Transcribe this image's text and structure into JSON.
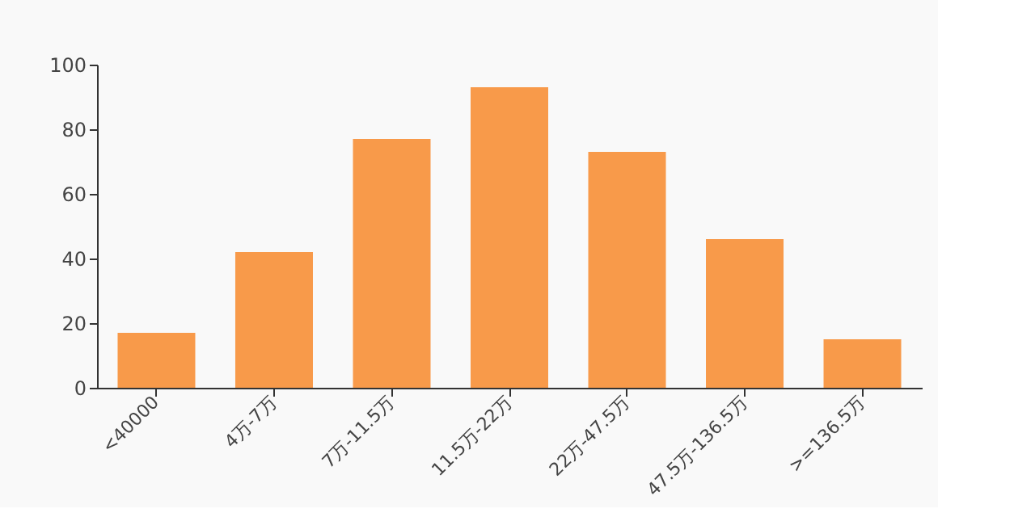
{
  "chart_data": {
    "type": "bar",
    "categories": [
      "<40000",
      "4万-7万",
      "7万-11.5万",
      "11.5万-22万",
      "22万-47.5万",
      "47.5万-136.5万",
      ">=136.5万"
    ],
    "values": [
      17,
      42,
      77,
      93,
      73,
      46,
      15
    ],
    "color": "#f89a4a",
    "ylim": [
      0,
      100
    ],
    "yticks": [
      0,
      20,
      40,
      60,
      80,
      100
    ],
    "grid": false
  }
}
